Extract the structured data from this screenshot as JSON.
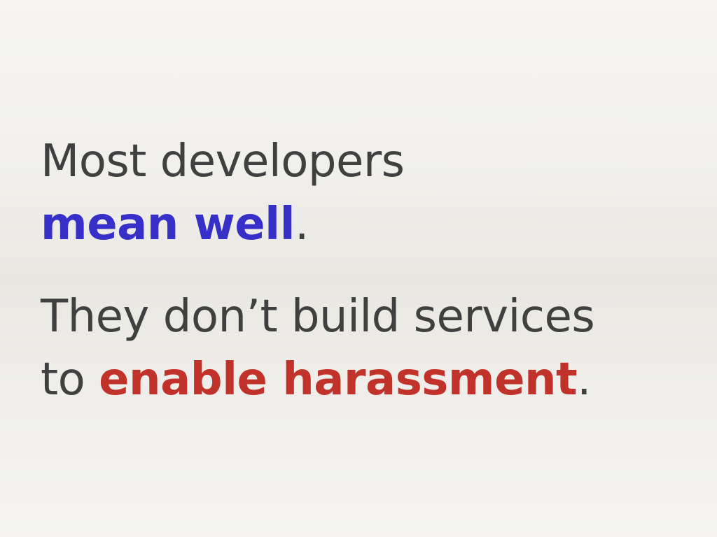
{
  "slide": {
    "statement_1": {
      "line_1": "Most developers",
      "highlight": "mean well",
      "end_punct": "."
    },
    "statement_2": {
      "line_1": "They don’t build services",
      "prefix": "to ",
      "highlight": "enable harassment",
      "end_punct": "."
    }
  },
  "colors": {
    "text": "#404040",
    "highlight_blue": "#3630c8",
    "highlight_red": "#c0322a"
  }
}
